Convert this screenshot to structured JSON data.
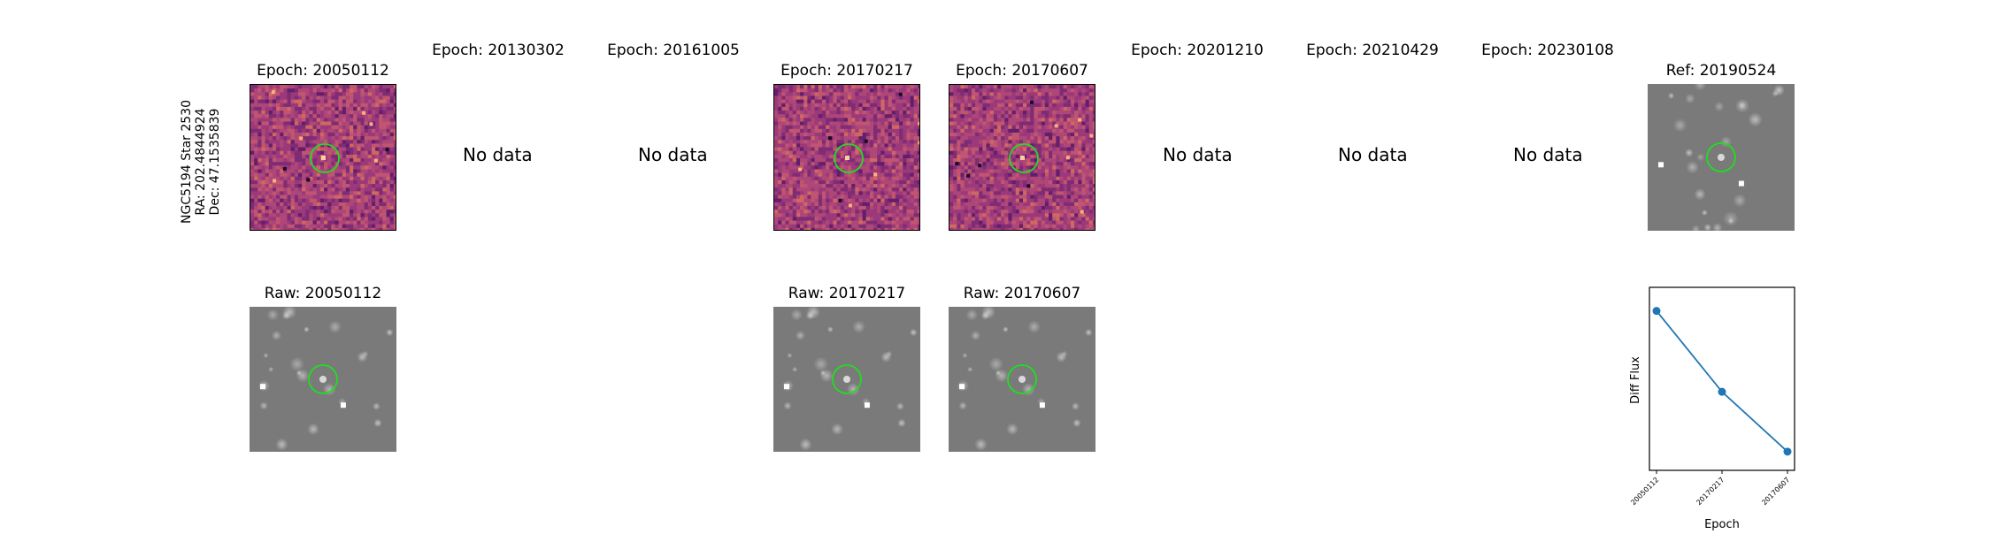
{
  "star_label": {
    "name": "NGC5194 Star 2530",
    "ra": "RA: 202.4844924",
    "dec": "Dec: 47.1535839"
  },
  "top_row": [
    {
      "title": "Epoch: 20050112",
      "type": "diff"
    },
    {
      "title": "Epoch: 20130302",
      "type": "nodata",
      "text": "No data"
    },
    {
      "title": "Epoch: 20161005",
      "type": "nodata",
      "text": "No data"
    },
    {
      "title": "Epoch: 20170217",
      "type": "diff"
    },
    {
      "title": "Epoch: 20170607",
      "type": "diff"
    },
    {
      "title": "Epoch: 20201210",
      "type": "nodata",
      "text": "No data"
    },
    {
      "title": "Epoch: 20210429",
      "type": "nodata",
      "text": "No data"
    },
    {
      "title": "Epoch: 20230108",
      "type": "nodata",
      "text": "No data"
    },
    {
      "title": "Ref: 20190524",
      "type": "raw"
    }
  ],
  "bottom_row": [
    {
      "title": "Raw: 20050112"
    },
    {
      "title": "Raw: 20170217"
    },
    {
      "title": "Raw: 20170607"
    }
  ],
  "colors": {
    "diff_base": "#9b3a7a",
    "raw_base": "#7a7a7a",
    "circle": "#22dd22",
    "line": "#1f77b4"
  },
  "chart_data": {
    "type": "line",
    "categories": [
      "20050112",
      "20170217",
      "20170607"
    ],
    "values": [
      0.92,
      0.42,
      0.05
    ],
    "xlabel": "Epoch",
    "ylabel": "Diff Flux",
    "ylim": [
      0,
      1
    ],
    "grid": false,
    "marker": "circle"
  }
}
